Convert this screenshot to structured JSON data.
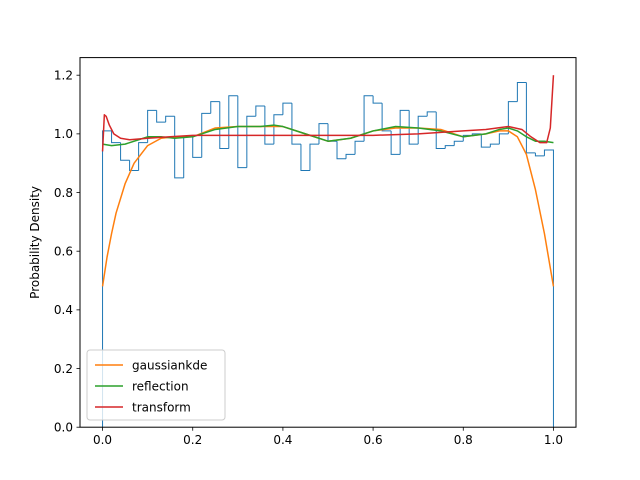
{
  "chart_data": {
    "type": "line",
    "title": "",
    "xlabel": "",
    "ylabel": "Probability Density",
    "xlim": [
      -0.05,
      1.05
    ],
    "ylim": [
      0,
      1.26
    ],
    "grid": false,
    "legend_position": "lower left",
    "xticks": [
      0.0,
      0.2,
      0.4,
      0.6,
      0.8,
      1.0
    ],
    "xtick_labels": [
      "0.0",
      "0.2",
      "0.4",
      "0.6",
      "0.8",
      "1.0"
    ],
    "yticks": [
      0.0,
      0.2,
      0.4,
      0.6,
      0.8,
      1.0,
      1.2
    ],
    "ytick_labels": [
      "0.0",
      "0.2",
      "0.4",
      "0.6",
      "0.8",
      "1.0",
      "1.2"
    ],
    "histogram": {
      "color": "#1f77b4",
      "bins": [
        0.0,
        0.02,
        0.04,
        0.06,
        0.08,
        0.1,
        0.12,
        0.14,
        0.16,
        0.18,
        0.2,
        0.22,
        0.24,
        0.26,
        0.28,
        0.3,
        0.32,
        0.34,
        0.36,
        0.38,
        0.4,
        0.42,
        0.44,
        0.46,
        0.48,
        0.5,
        0.52,
        0.54,
        0.56,
        0.58,
        0.6,
        0.62,
        0.64,
        0.66,
        0.68,
        0.7,
        0.72,
        0.74,
        0.76,
        0.78,
        0.8,
        0.82,
        0.84,
        0.86,
        0.88,
        0.9,
        0.92,
        0.94,
        0.96,
        0.98,
        1.0
      ],
      "values": [
        1.01,
        0.97,
        0.91,
        0.875,
        0.97,
        1.08,
        1.04,
        1.06,
        0.85,
        0.99,
        0.92,
        1.07,
        1.11,
        0.95,
        1.13,
        0.885,
        1.06,
        1.095,
        0.965,
        1.065,
        1.105,
        0.965,
        0.875,
        0.965,
        1.035,
        0.975,
        0.915,
        0.93,
        0.975,
        1.13,
        1.105,
        1.01,
        0.93,
        1.08,
        0.965,
        1.06,
        1.075,
        0.95,
        0.96,
        0.975,
        0.995,
        1.0,
        0.955,
        0.965,
        1.0,
        1.11,
        1.175,
        0.935,
        0.925,
        0.945
      ]
    },
    "series": [
      {
        "name": "gaussiankde",
        "color": "#ff7f0e",
        "x": [
          0.0,
          0.01,
          0.02,
          0.03,
          0.05,
          0.07,
          0.1,
          0.13,
          0.16,
          0.2,
          0.25,
          0.3,
          0.35,
          0.4,
          0.45,
          0.5,
          0.55,
          0.6,
          0.65,
          0.7,
          0.75,
          0.8,
          0.85,
          0.88,
          0.9,
          0.92,
          0.94,
          0.96,
          0.98,
          1.0
        ],
        "y": [
          0.48,
          0.58,
          0.66,
          0.73,
          0.83,
          0.9,
          0.96,
          0.985,
          0.99,
          0.99,
          1.02,
          1.025,
          1.025,
          1.025,
          1.0,
          0.975,
          0.985,
          1.01,
          1.02,
          1.02,
          1.015,
          0.99,
          1.0,
          1.01,
          1.01,
          0.99,
          0.93,
          0.81,
          0.66,
          0.48
        ]
      },
      {
        "name": "reflection",
        "color": "#2ca02c",
        "x": [
          0.0,
          0.02,
          0.05,
          0.08,
          0.1,
          0.13,
          0.16,
          0.2,
          0.25,
          0.3,
          0.35,
          0.38,
          0.4,
          0.45,
          0.5,
          0.55,
          0.6,
          0.65,
          0.7,
          0.75,
          0.8,
          0.85,
          0.88,
          0.9,
          0.92,
          0.94,
          0.96,
          0.98,
          1.0
        ],
        "y": [
          0.965,
          0.96,
          0.965,
          0.98,
          0.99,
          0.99,
          0.985,
          0.99,
          1.015,
          1.025,
          1.025,
          1.03,
          1.025,
          1.0,
          0.975,
          0.985,
          1.01,
          1.025,
          1.02,
          1.01,
          0.99,
          1.0,
          1.015,
          1.02,
          1.01,
          0.99,
          0.975,
          0.975,
          0.97
        ]
      },
      {
        "name": "transform",
        "color": "#d62728",
        "x": [
          0.0,
          0.004,
          0.008,
          0.015,
          0.025,
          0.04,
          0.06,
          0.1,
          0.15,
          0.2,
          0.3,
          0.4,
          0.5,
          0.6,
          0.7,
          0.8,
          0.85,
          0.9,
          0.93,
          0.95,
          0.97,
          0.985,
          0.993,
          1.0
        ],
        "y": [
          0.94,
          1.065,
          1.06,
          1.03,
          1.0,
          0.985,
          0.98,
          0.985,
          0.99,
          0.995,
          0.995,
          0.995,
          0.995,
          0.995,
          1.0,
          1.01,
          1.015,
          1.025,
          1.015,
          0.99,
          0.97,
          0.97,
          1.02,
          1.2
        ]
      }
    ]
  }
}
